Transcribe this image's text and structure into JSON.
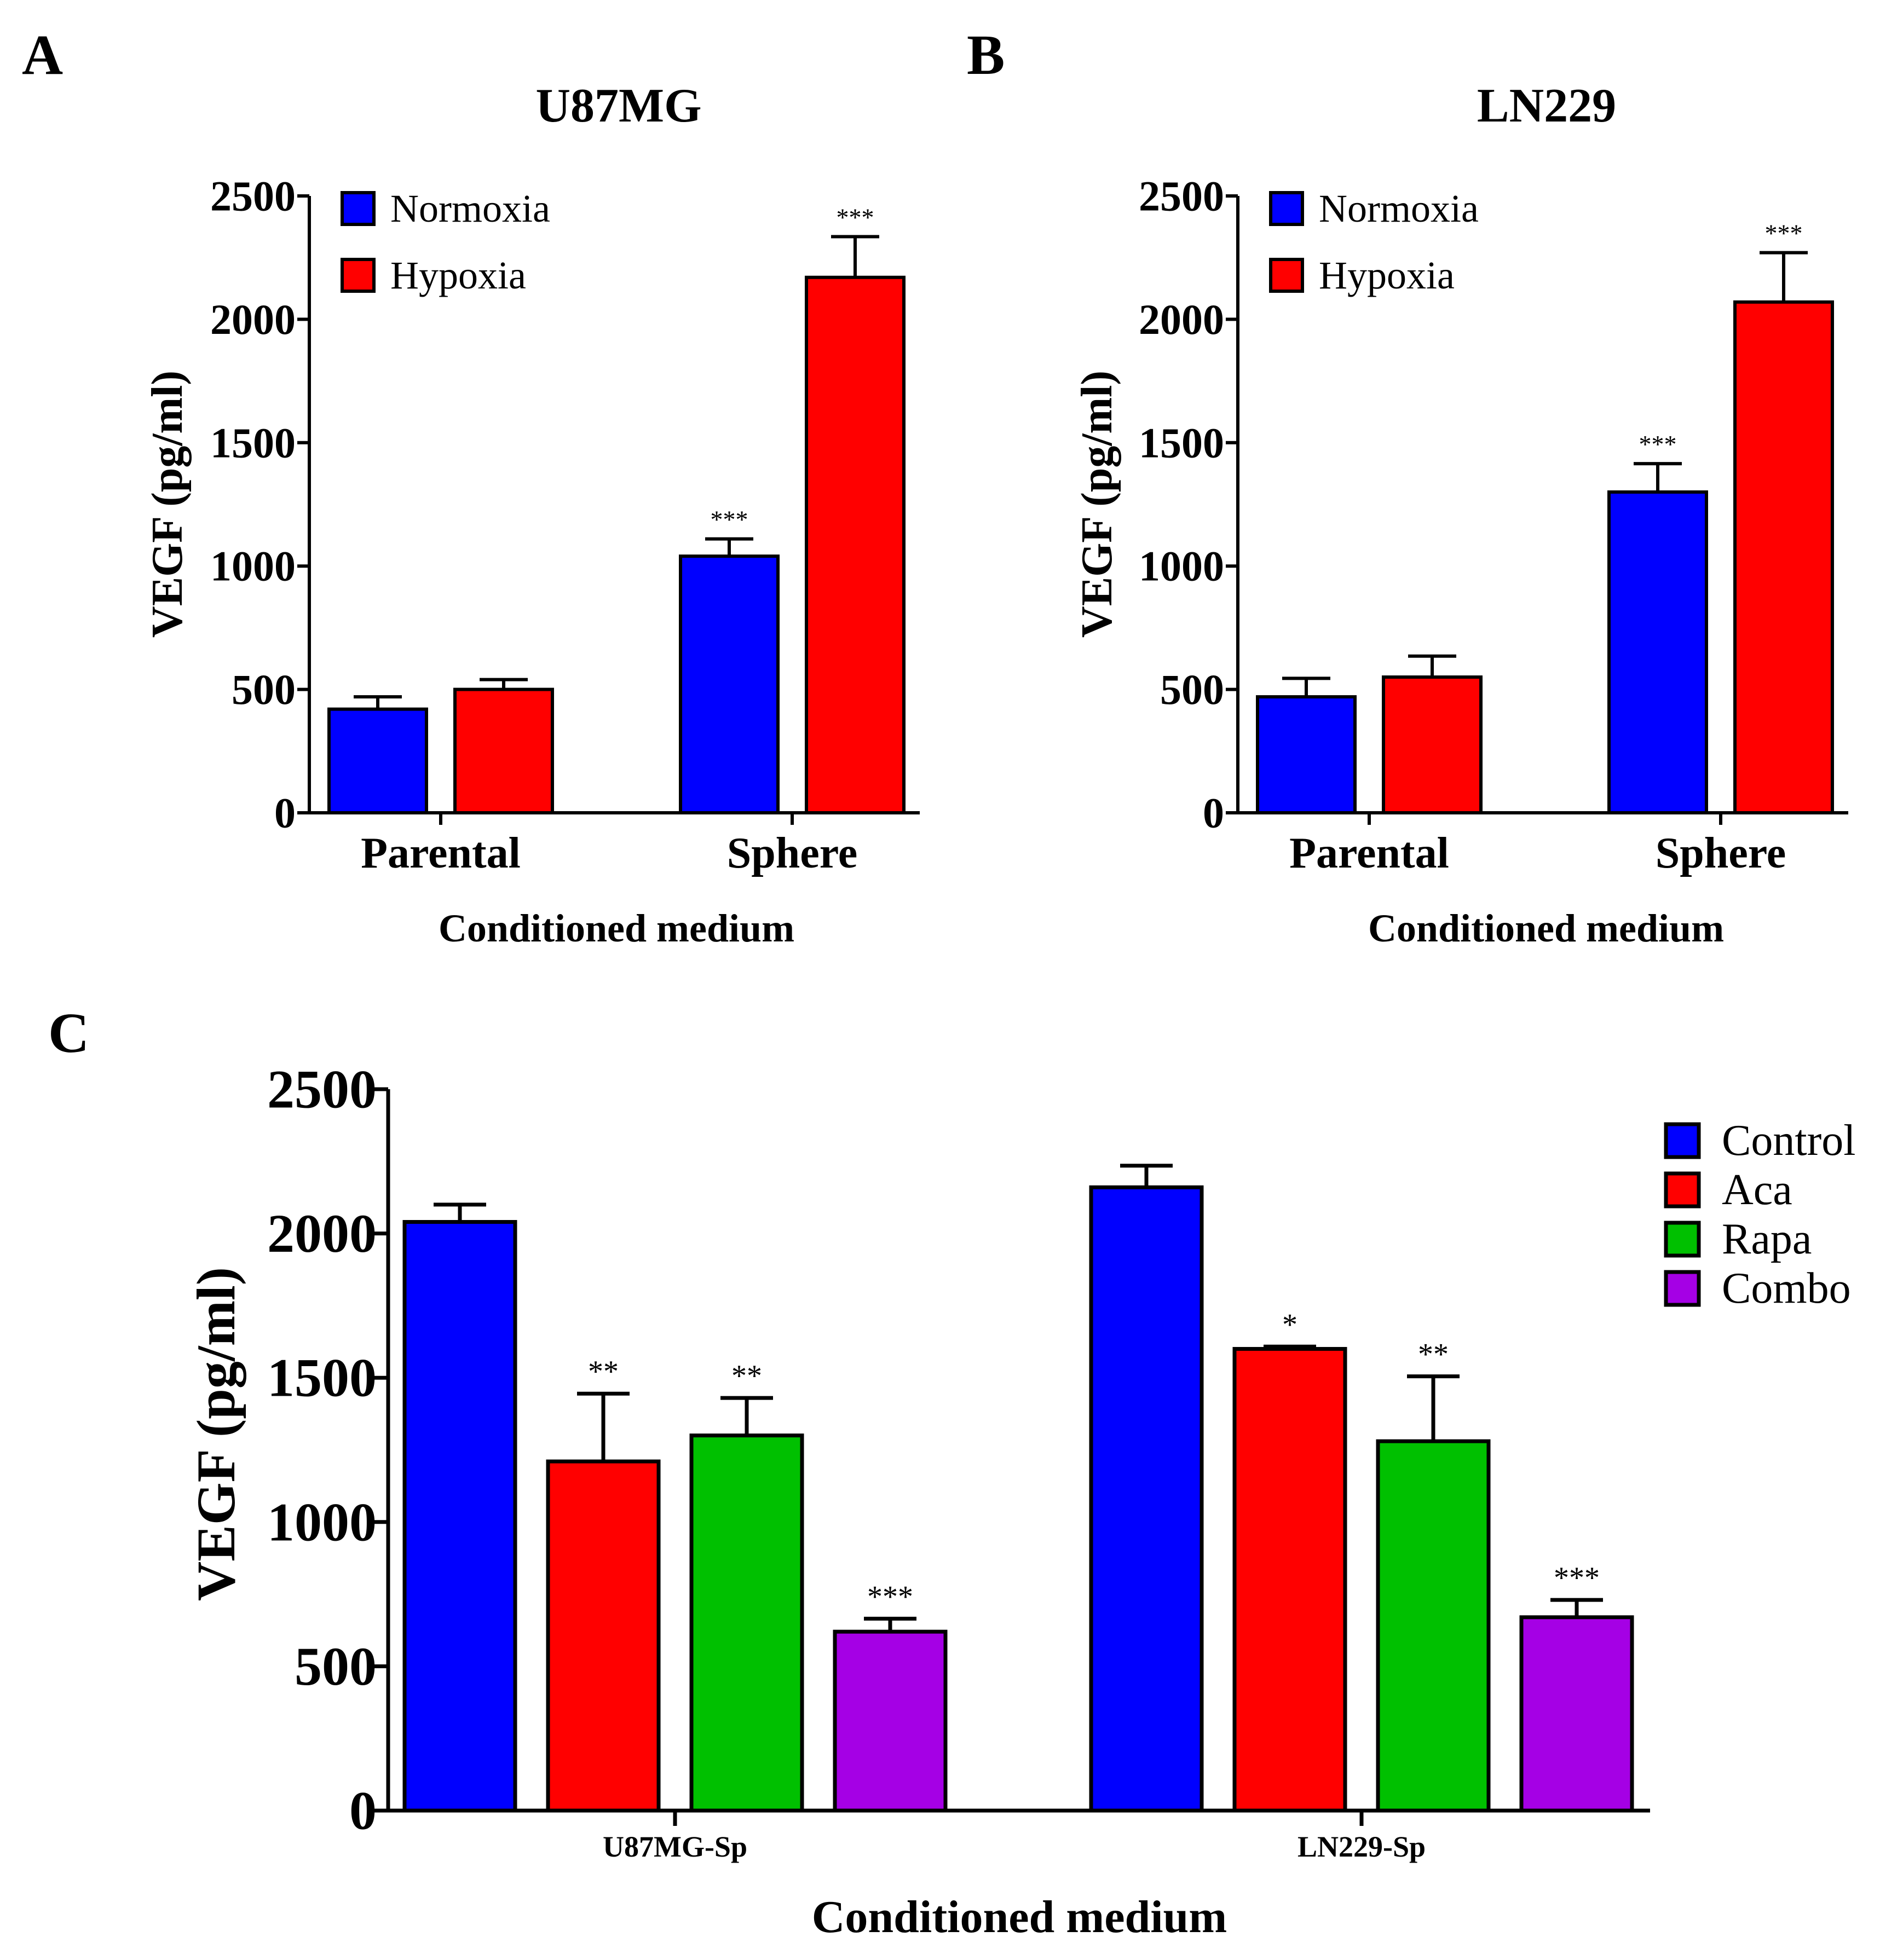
{
  "colors": {
    "Normoxia": "#0000ff",
    "Hypoxia": "#ff0000",
    "Control": "#0000ff",
    "Aca": "#ff0000",
    "Rapa": "#00c000",
    "Combo": "#a500e5",
    "axis": "#000000"
  },
  "chart_data": [
    {
      "panel": "A",
      "type": "bar",
      "title": "U87MG",
      "xlabel": "Conditioned medium",
      "ylabel": "VEGF (pg/ml)",
      "ylim": [
        0,
        2500
      ],
      "yticks": [
        0,
        500,
        1000,
        1500,
        2000,
        2500
      ],
      "categories": [
        "Parental",
        "Sphere"
      ],
      "legend_position": "top-left",
      "series": [
        {
          "name": "Normoxia",
          "values": [
            420,
            1040
          ],
          "errors": [
            50,
            70
          ],
          "significance": [
            "",
            "***"
          ]
        },
        {
          "name": "Hypoxia",
          "values": [
            500,
            2170
          ],
          "errors": [
            40,
            165
          ],
          "significance": [
            "",
            "***"
          ]
        }
      ]
    },
    {
      "panel": "B",
      "type": "bar",
      "title": "LN229",
      "xlabel": "Conditioned medium",
      "ylabel": "VEGF (pg/ml)",
      "ylim": [
        0,
        2500
      ],
      "yticks": [
        0,
        500,
        1000,
        1500,
        2000,
        2500
      ],
      "categories": [
        "Parental",
        "Sphere"
      ],
      "legend_position": "top-left",
      "series": [
        {
          "name": "Normoxia",
          "values": [
            470,
            1300
          ],
          "errors": [
            75,
            115
          ],
          "significance": [
            "",
            "***"
          ]
        },
        {
          "name": "Hypoxia",
          "values": [
            550,
            2070
          ],
          "errors": [
            85,
            200
          ],
          "significance": [
            "",
            "***"
          ]
        }
      ]
    },
    {
      "panel": "C",
      "type": "bar",
      "title": "",
      "xlabel": "Conditioned medium",
      "ylabel": "VEGF (pg/ml)",
      "ylim": [
        0,
        2500
      ],
      "yticks": [
        0,
        500,
        1000,
        1500,
        2000,
        2500
      ],
      "categories": [
        "U87MG-Sp",
        "LN229-Sp"
      ],
      "legend_position": "top-right",
      "series": [
        {
          "name": "Control",
          "values": [
            2040,
            2160
          ],
          "errors": [
            60,
            75
          ],
          "significance": [
            "",
            ""
          ]
        },
        {
          "name": "Aca",
          "values": [
            1210,
            1600
          ],
          "errors": [
            235,
            8
          ],
          "significance": [
            "**",
            "*"
          ]
        },
        {
          "name": "Rapa",
          "values": [
            1300,
            1280
          ],
          "errors": [
            130,
            225
          ],
          "significance": [
            "**",
            "**"
          ]
        },
        {
          "name": "Combo",
          "values": [
            620,
            670
          ],
          "errors": [
            45,
            60
          ],
          "significance": [
            "***",
            "***"
          ]
        }
      ]
    }
  ]
}
